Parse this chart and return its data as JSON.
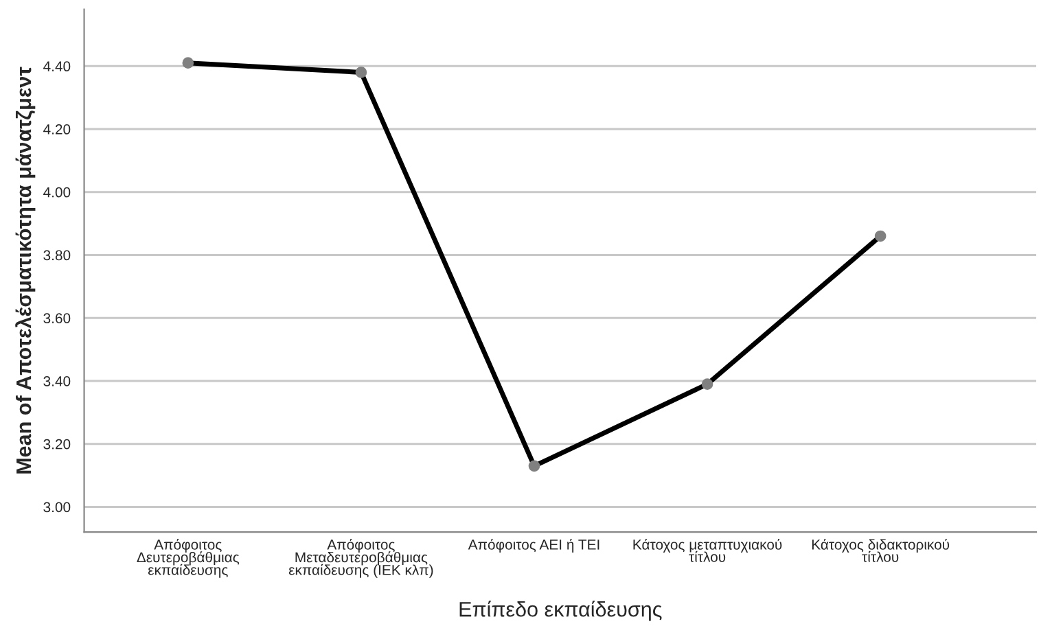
{
  "chart_data": {
    "type": "line",
    "xlabel": "Επίπεδο εκπαίδευσης",
    "ylabel": "Mean of Αποτελέσματικότητα μάνατζμεντ",
    "categories": [
      "Απόφοιτος\nΔευτεροβάθμιας\nεκπαίδευσης",
      "Απόφοιτος\nΜεταδευτεροβάθμιας\nεκπαίδευσης (ΙΕΚ κλπ)",
      "Απόφοιτος ΑΕΙ ή ΤΕΙ",
      "Κάτοχος μεταπτυχιακού\nτίτλου",
      "Κάτοχος διδακτορικού\nτίτλου"
    ],
    "series": [
      {
        "color": "#000000",
        "values": [
          4.41,
          4.38,
          3.13,
          3.39,
          3.86
        ]
      }
    ],
    "ylim": [
      2.92,
      4.58
    ],
    "yticks": [
      {
        "value": 3.0,
        "label": "3.00"
      },
      {
        "value": 3.2,
        "label": "3.20"
      },
      {
        "value": 3.4,
        "label": "3.40"
      },
      {
        "value": 3.6,
        "label": "3.60"
      },
      {
        "value": 3.8,
        "label": "3.80"
      },
      {
        "value": 4.0,
        "label": "4.00"
      },
      {
        "value": 4.2,
        "label": "4.20"
      },
      {
        "value": 4.4,
        "label": "4.40"
      }
    ],
    "grid": "y",
    "marker": "circle",
    "line_style": "solid",
    "legend": false
  }
}
